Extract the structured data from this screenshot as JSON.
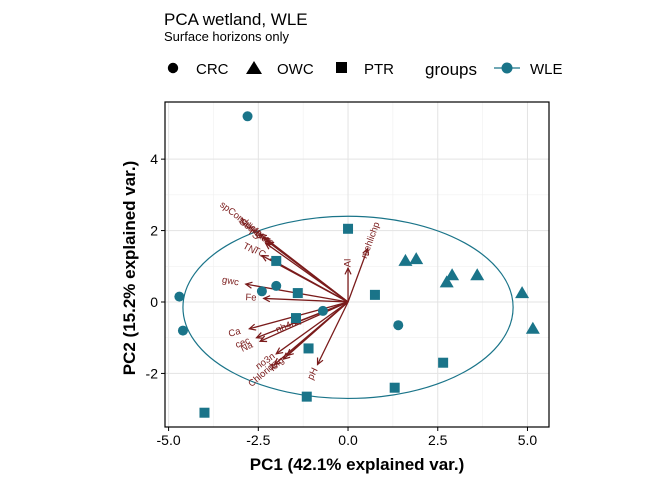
{
  "chart_data": {
    "type": "scatter",
    "title": "PCA wetland, WLE",
    "subtitle": "Surface horizons only",
    "xlabel": "PC1 (42.1% explained var.)",
    "ylabel": "PC2 (15.2% explained var.)",
    "xlim": [
      -5.1,
      5.6
    ],
    "ylim": [
      -3.5,
      5.6
    ],
    "xticks": [
      -5.0,
      -2.5,
      0.0,
      2.5,
      5.0
    ],
    "xtick_labels": [
      "-5.0",
      "-2.5",
      "0.0",
      "2.5",
      "5.0"
    ],
    "yticks": [
      -2,
      0,
      2,
      4
    ],
    "ytick_labels": [
      "-2",
      "0",
      "2",
      "4"
    ],
    "grid": true,
    "point_color": "#1a7489",
    "vector_color": "#7a1b1b",
    "legend": {
      "placement": "top",
      "shapes": [
        {
          "label": "CRC",
          "shape": "circle"
        },
        {
          "label": "OWC",
          "shape": "triangle"
        },
        {
          "label": "PTR",
          "shape": "square"
        }
      ],
      "groups_title": "groups",
      "groups": [
        {
          "label": "WLE",
          "color": "#1a7489"
        }
      ]
    },
    "points": [
      {
        "x": -2.8,
        "y": 5.2,
        "shape": "circle"
      },
      {
        "x": -4.7,
        "y": 0.15,
        "shape": "circle"
      },
      {
        "x": -4.6,
        "y": -0.8,
        "shape": "circle"
      },
      {
        "x": -2.4,
        "y": 0.3,
        "shape": "circle"
      },
      {
        "x": -2.0,
        "y": 0.45,
        "shape": "circle"
      },
      {
        "x": -0.7,
        "y": -0.25,
        "shape": "circle"
      },
      {
        "x": 1.4,
        "y": -0.65,
        "shape": "circle"
      },
      {
        "x": 1.6,
        "y": 1.15,
        "shape": "triangle"
      },
      {
        "x": 1.9,
        "y": 1.2,
        "shape": "triangle"
      },
      {
        "x": 2.75,
        "y": 0.55,
        "shape": "triangle"
      },
      {
        "x": 2.9,
        "y": 0.75,
        "shape": "triangle"
      },
      {
        "x": 3.6,
        "y": 0.75,
        "shape": "triangle"
      },
      {
        "x": 4.85,
        "y": 0.25,
        "shape": "triangle"
      },
      {
        "x": 5.15,
        "y": -0.75,
        "shape": "triangle"
      },
      {
        "x": -2.0,
        "y": 1.15,
        "shape": "square"
      },
      {
        "x": -1.4,
        "y": 0.25,
        "shape": "square"
      },
      {
        "x": -1.45,
        "y": -0.45,
        "shape": "square"
      },
      {
        "x": -1.1,
        "y": -1.3,
        "shape": "square"
      },
      {
        "x": -1.15,
        "y": -2.65,
        "shape": "square"
      },
      {
        "x": 0.0,
        "y": 2.05,
        "shape": "square"
      },
      {
        "x": 0.75,
        "y": 0.2,
        "shape": "square"
      },
      {
        "x": 1.3,
        "y": -2.4,
        "shape": "square"
      },
      {
        "x": 2.65,
        "y": -1.7,
        "shape": "square"
      },
      {
        "x": -4.0,
        "y": -3.1,
        "shape": "square"
      }
    ],
    "ellipse": {
      "cx": 0.0,
      "cy": -0.15,
      "rx": 4.6,
      "ry": 2.55
    },
    "vectors": [
      {
        "label": "spConductance",
        "x": -2.45,
        "y": 1.9
      },
      {
        "label": "salinity",
        "x": -2.35,
        "y": 1.8
      },
      {
        "label": "TS",
        "x": -2.3,
        "y": 1.65
      },
      {
        "label": "Ssurface",
        "x": -2.25,
        "y": 1.7
      },
      {
        "label": "TN",
        "x": -2.4,
        "y": 1.3
      },
      {
        "label": "TC",
        "x": -2.15,
        "y": 1.2
      },
      {
        "label": "gwc",
        "x": -2.85,
        "y": 0.5
      },
      {
        "label": "Fe",
        "x": -2.35,
        "y": 0.1
      },
      {
        "label": "Ca",
        "x": -2.75,
        "y": -0.75
      },
      {
        "label": "cec",
        "x": -2.55,
        "y": -1.0
      },
      {
        "label": "Na",
        "x": -2.45,
        "y": -1.1
      },
      {
        "label": "no3n",
        "x": -2.0,
        "y": -1.45
      },
      {
        "label": "Chloride",
        "x": -2.05,
        "y": -1.75
      },
      {
        "label": "K",
        "x": -1.8,
        "y": -1.6
      },
      {
        "label": "Mg",
        "x": -1.7,
        "y": -1.5
      },
      {
        "label": "nh4n",
        "x": -1.5,
        "y": -0.6
      },
      {
        "label": "Al",
        "x": 0.0,
        "y": 0.95
      },
      {
        "label": "mehlichp",
        "x": 0.55,
        "y": 1.5
      },
      {
        "label": "pH",
        "x": -0.85,
        "y": -1.75
      }
    ]
  }
}
